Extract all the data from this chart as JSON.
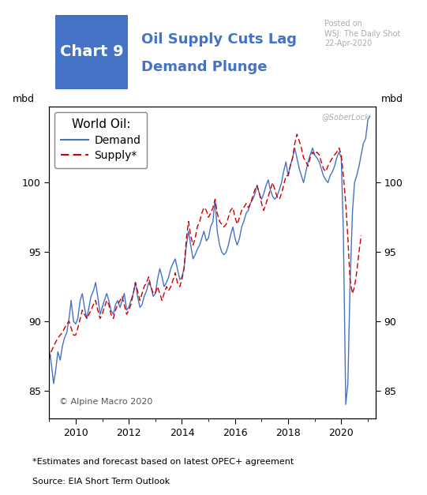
{
  "title_chart_num": "Chart 9",
  "title_chart_num_bg": "#4472c4",
  "title_text1": "Oil Supply Cuts Lag",
  "title_text2": "Demand Plunge",
  "title_color": "#4472c4",
  "posted_on_line1": "Posted on",
  "posted_on_line2": "WSJ: The Daily Shot",
  "posted_on_line3": "22-Apr-2020",
  "watermark": "@SoberLock",
  "ylabel_left": "mbd",
  "ylabel_right": "mbd",
  "legend_title": "World Oil:",
  "legend_demand": "Demand",
  "legend_supply": "Supply*",
  "copyright": "© Alpine Macro 2020",
  "footnote_line1": "*Estimates and forecast based on latest OPEC+ agreement",
  "footnote_line2": "Source: EIA Short Term Outlook",
  "ylim_low": 83.0,
  "ylim_high": 105.5,
  "yticks": [
    85,
    90,
    95,
    100
  ],
  "xlim_low": 2009.0,
  "xlim_high": 2021.3,
  "xticks": [
    2010,
    2012,
    2014,
    2016,
    2018,
    2020
  ],
  "demand_color": "#4472c4",
  "supply_color": "#cc0000",
  "bg_color": "#ffffff",
  "demand_x": [
    2009.0,
    2009.08,
    2009.17,
    2009.25,
    2009.33,
    2009.42,
    2009.5,
    2009.58,
    2009.67,
    2009.75,
    2009.83,
    2009.92,
    2010.0,
    2010.08,
    2010.17,
    2010.25,
    2010.33,
    2010.42,
    2010.5,
    2010.58,
    2010.67,
    2010.75,
    2010.83,
    2010.92,
    2011.0,
    2011.08,
    2011.17,
    2011.25,
    2011.33,
    2011.42,
    2011.5,
    2011.58,
    2011.67,
    2011.75,
    2011.83,
    2011.92,
    2012.0,
    2012.08,
    2012.17,
    2012.25,
    2012.33,
    2012.42,
    2012.5,
    2012.58,
    2012.67,
    2012.75,
    2012.83,
    2012.92,
    2013.0,
    2013.08,
    2013.17,
    2013.25,
    2013.33,
    2013.42,
    2013.5,
    2013.58,
    2013.67,
    2013.75,
    2013.83,
    2013.92,
    2014.0,
    2014.08,
    2014.17,
    2014.25,
    2014.33,
    2014.42,
    2014.5,
    2014.58,
    2014.67,
    2014.75,
    2014.83,
    2014.92,
    2015.0,
    2015.08,
    2015.17,
    2015.25,
    2015.33,
    2015.42,
    2015.5,
    2015.58,
    2015.67,
    2015.75,
    2015.83,
    2015.92,
    2016.0,
    2016.08,
    2016.17,
    2016.25,
    2016.33,
    2016.42,
    2016.5,
    2016.58,
    2016.67,
    2016.75,
    2016.83,
    2016.92,
    2017.0,
    2017.08,
    2017.17,
    2017.25,
    2017.33,
    2017.42,
    2017.5,
    2017.58,
    2017.67,
    2017.75,
    2017.83,
    2017.92,
    2018.0,
    2018.08,
    2018.17,
    2018.25,
    2018.33,
    2018.42,
    2018.5,
    2018.58,
    2018.67,
    2018.75,
    2018.83,
    2018.92,
    2019.0,
    2019.08,
    2019.17,
    2019.25,
    2019.33,
    2019.42,
    2019.5,
    2019.58,
    2019.67,
    2019.75,
    2019.83,
    2019.92,
    2020.0,
    2020.08,
    2020.17,
    2020.25,
    2020.33,
    2020.42,
    2020.5,
    2020.58,
    2020.67,
    2020.75,
    2020.83,
    2020.92,
    2021.0,
    2021.08
  ],
  "demand_y": [
    88.0,
    87.0,
    85.5,
    86.5,
    87.8,
    87.2,
    88.2,
    88.8,
    89.2,
    90.2,
    91.5,
    90.0,
    89.8,
    90.2,
    91.5,
    92.0,
    91.0,
    90.2,
    91.0,
    91.8,
    92.2,
    92.8,
    91.8,
    90.5,
    91.0,
    91.5,
    92.0,
    91.5,
    90.8,
    90.5,
    91.2,
    91.5,
    91.0,
    91.5,
    92.0,
    90.8,
    91.0,
    91.5,
    92.0,
    92.8,
    91.8,
    91.0,
    91.2,
    91.8,
    92.2,
    92.8,
    92.5,
    91.8,
    92.0,
    93.0,
    93.8,
    93.2,
    92.5,
    92.8,
    93.2,
    93.8,
    94.2,
    94.5,
    93.8,
    93.0,
    93.2,
    93.8,
    95.5,
    96.5,
    95.5,
    94.5,
    94.8,
    95.2,
    95.5,
    96.0,
    96.5,
    95.8,
    96.0,
    96.8,
    97.2,
    98.8,
    96.5,
    95.5,
    95.0,
    94.8,
    95.0,
    95.5,
    96.2,
    96.8,
    96.0,
    95.5,
    96.0,
    96.8,
    97.2,
    97.8,
    98.0,
    98.5,
    98.8,
    99.2,
    99.8,
    99.2,
    98.8,
    99.2,
    99.8,
    100.2,
    99.5,
    99.0,
    98.8,
    99.0,
    99.5,
    100.0,
    100.8,
    101.5,
    100.5,
    101.2,
    101.8,
    102.5,
    101.8,
    101.0,
    100.5,
    100.0,
    100.8,
    101.5,
    102.0,
    102.5,
    102.0,
    101.8,
    101.5,
    101.0,
    100.5,
    100.2,
    100.0,
    100.5,
    100.8,
    101.2,
    101.8,
    102.2,
    101.8,
    96.5,
    84.0,
    85.5,
    92.5,
    97.8,
    100.0,
    100.5,
    101.2,
    102.0,
    102.8,
    103.2,
    104.5,
    104.8
  ],
  "supply_x": [
    2009.0,
    2009.08,
    2009.17,
    2009.25,
    2009.33,
    2009.42,
    2009.5,
    2009.58,
    2009.67,
    2009.75,
    2009.83,
    2009.92,
    2010.0,
    2010.08,
    2010.17,
    2010.25,
    2010.33,
    2010.42,
    2010.5,
    2010.58,
    2010.67,
    2010.75,
    2010.83,
    2010.92,
    2011.0,
    2011.08,
    2011.17,
    2011.25,
    2011.33,
    2011.42,
    2011.5,
    2011.58,
    2011.67,
    2011.75,
    2011.83,
    2011.92,
    2012.0,
    2012.08,
    2012.17,
    2012.25,
    2012.33,
    2012.42,
    2012.5,
    2012.58,
    2012.67,
    2012.75,
    2012.83,
    2012.92,
    2013.0,
    2013.08,
    2013.17,
    2013.25,
    2013.33,
    2013.42,
    2013.5,
    2013.58,
    2013.67,
    2013.75,
    2013.83,
    2013.92,
    2014.0,
    2014.08,
    2014.17,
    2014.25,
    2014.33,
    2014.42,
    2014.5,
    2014.58,
    2014.67,
    2014.75,
    2014.83,
    2014.92,
    2015.0,
    2015.08,
    2015.17,
    2015.25,
    2015.33,
    2015.42,
    2015.5,
    2015.58,
    2015.67,
    2015.75,
    2015.83,
    2015.92,
    2016.0,
    2016.08,
    2016.17,
    2016.25,
    2016.33,
    2016.42,
    2016.5,
    2016.58,
    2016.67,
    2016.75,
    2016.83,
    2016.92,
    2017.0,
    2017.08,
    2017.17,
    2017.25,
    2017.33,
    2017.42,
    2017.5,
    2017.58,
    2017.67,
    2017.75,
    2017.83,
    2017.92,
    2018.0,
    2018.08,
    2018.17,
    2018.25,
    2018.33,
    2018.42,
    2018.5,
    2018.58,
    2018.67,
    2018.75,
    2018.83,
    2018.92,
    2019.0,
    2019.08,
    2019.17,
    2019.25,
    2019.33,
    2019.42,
    2019.5,
    2019.58,
    2019.67,
    2019.75,
    2019.83,
    2019.92,
    2020.0,
    2020.08,
    2020.17,
    2020.25,
    2020.33,
    2020.42,
    2020.5,
    2020.58,
    2020.67,
    2020.75
  ],
  "supply_y": [
    87.2,
    87.8,
    88.2,
    88.5,
    88.8,
    89.0,
    89.2,
    89.5,
    89.8,
    90.0,
    89.5,
    89.0,
    89.0,
    89.5,
    90.2,
    90.8,
    90.5,
    90.2,
    90.5,
    90.8,
    91.2,
    91.5,
    90.8,
    90.2,
    90.5,
    91.0,
    91.5,
    91.2,
    90.5,
    90.2,
    90.8,
    91.2,
    91.5,
    91.8,
    91.2,
    90.5,
    90.8,
    91.2,
    92.0,
    92.8,
    92.2,
    91.5,
    92.0,
    92.5,
    92.8,
    93.2,
    92.5,
    92.0,
    92.0,
    92.5,
    92.0,
    91.5,
    92.0,
    92.5,
    92.2,
    92.5,
    93.0,
    93.5,
    92.8,
    92.5,
    93.0,
    93.8,
    96.0,
    97.2,
    96.2,
    95.5,
    96.0,
    96.8,
    97.2,
    97.8,
    98.2,
    98.0,
    97.5,
    97.8,
    98.2,
    98.8,
    97.8,
    97.2,
    97.0,
    96.8,
    97.0,
    97.5,
    98.0,
    98.2,
    97.5,
    97.0,
    97.5,
    98.0,
    98.2,
    98.5,
    98.2,
    98.5,
    99.0,
    99.5,
    99.8,
    99.2,
    98.5,
    98.0,
    98.5,
    99.0,
    99.5,
    100.0,
    99.5,
    99.0,
    98.8,
    99.2,
    99.8,
    100.5,
    100.5,
    101.2,
    101.8,
    102.8,
    103.5,
    103.0,
    102.5,
    101.8,
    101.5,
    101.2,
    101.8,
    102.2,
    102.0,
    102.2,
    102.0,
    101.5,
    101.0,
    100.8,
    101.2,
    101.5,
    101.8,
    102.0,
    102.2,
    102.5,
    102.0,
    100.5,
    98.5,
    96.0,
    93.0,
    92.0,
    92.5,
    93.5,
    95.0,
    96.2
  ]
}
